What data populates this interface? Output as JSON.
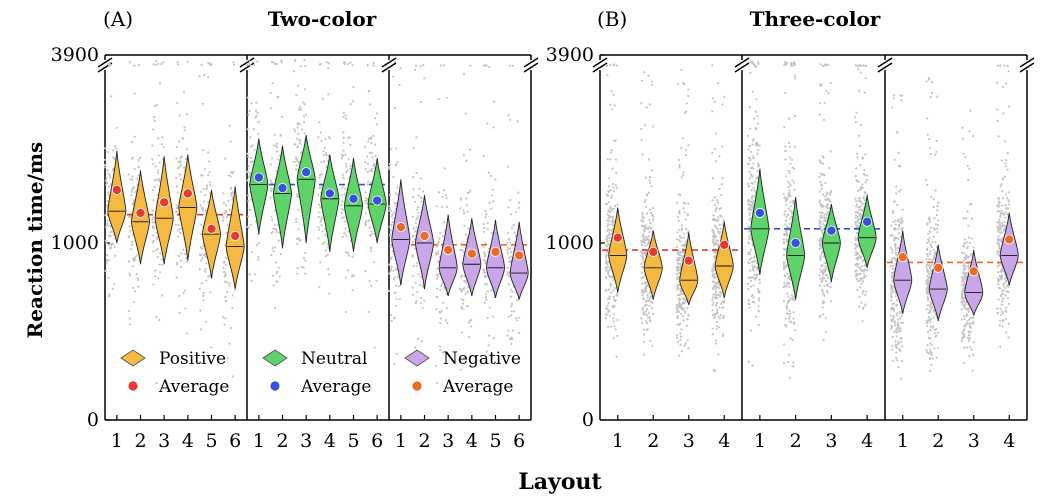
{
  "chart_data": [
    {
      "type": "violin",
      "panel_label": "(A)",
      "title": "Two-color",
      "xlabel": "Layout",
      "ylabel": "Reaction time/ms",
      "yticks": [
        "0",
        "1000",
        "3900"
      ],
      "axis_break": true,
      "groups": [
        {
          "name": "Positive",
          "average_label": "Average",
          "color": "#F5B942",
          "avg_color": "#E8392F",
          "ref_line": 1160,
          "categories": [
            "1",
            "2",
            "3",
            "4",
            "5",
            "6"
          ],
          "medians": [
            1180,
            1120,
            1140,
            1200,
            1050,
            980
          ],
          "averages": [
            1300,
            1170,
            1230,
            1280,
            1080,
            1040
          ],
          "ranges": [
            [
              1000,
              1520
            ],
            [
              880,
              1410
            ],
            [
              880,
              1490
            ],
            [
              900,
              1500
            ],
            [
              800,
              1300
            ],
            [
              740,
              1320
            ]
          ]
        },
        {
          "name": "Neutral",
          "average_label": "Average",
          "color": "#5ED36A",
          "avg_color": "#3A4FE0",
          "ref_line": 1330,
          "categories": [
            "1",
            "2",
            "3",
            "4",
            "5",
            "6"
          ],
          "medians": [
            1330,
            1280,
            1360,
            1250,
            1210,
            1220
          ],
          "averages": [
            1370,
            1310,
            1400,
            1280,
            1250,
            1240
          ],
          "ranges": [
            [
              1050,
              1590
            ],
            [
              970,
              1550
            ],
            [
              1000,
              1610
            ],
            [
              950,
              1500
            ],
            [
              950,
              1480
            ],
            [
              1000,
              1480
            ]
          ]
        },
        {
          "name": "Negative",
          "average_label": "Average",
          "color": "#C9A6E8",
          "avg_color": "#EE6A23",
          "ref_line": 990,
          "categories": [
            "1",
            "2",
            "3",
            "4",
            "5",
            "6"
          ],
          "medians": [
            1020,
            1000,
            860,
            880,
            860,
            830
          ],
          "averages": [
            1090,
            1040,
            960,
            940,
            950,
            930
          ],
          "ranges": [
            [
              760,
              1360
            ],
            [
              740,
              1270
            ],
            [
              700,
              1160
            ],
            [
              700,
              1140
            ],
            [
              690,
              1130
            ],
            [
              680,
              1120
            ]
          ]
        }
      ]
    },
    {
      "type": "violin",
      "panel_label": "(B)",
      "title": "Three-color",
      "xlabel": "Layout",
      "ylabel": "Reaction time/ms",
      "yticks": [
        "0",
        "1000",
        "3900"
      ],
      "axis_break": true,
      "groups": [
        {
          "name": "Positive",
          "color": "#F5B942",
          "avg_color": "#E8392F",
          "ref_line": 960,
          "categories": [
            "1",
            "2",
            "3",
            "4"
          ],
          "medians": [
            930,
            860,
            790,
            870
          ],
          "averages": [
            1030,
            950,
            900,
            990
          ],
          "ranges": [
            [
              720,
              1200
            ],
            [
              680,
              1070
            ],
            [
              650,
              1060
            ],
            [
              690,
              1120
            ]
          ]
        },
        {
          "name": "Neutral",
          "color": "#5ED36A",
          "avg_color": "#3A4FE0",
          "ref_line": 1080,
          "categories": [
            "1",
            "2",
            "3",
            "4"
          ],
          "medians": [
            1080,
            930,
            1000,
            1030
          ],
          "averages": [
            1170,
            1000,
            1070,
            1120
          ],
          "ranges": [
            [
              820,
              1420
            ],
            [
              680,
              1260
            ],
            [
              780,
              1220
            ],
            [
              860,
              1270
            ]
          ]
        },
        {
          "name": "Negative",
          "color": "#C9A6E8",
          "avg_color": "#EE6A23",
          "ref_line": 890,
          "categories": [
            "1",
            "2",
            "3",
            "4"
          ],
          "medians": [
            790,
            740,
            720,
            930
          ],
          "averages": [
            920,
            860,
            840,
            1020
          ],
          "ranges": [
            [
              600,
              1070
            ],
            [
              560,
              990
            ],
            [
              590,
              960
            ],
            [
              760,
              1170
            ]
          ]
        }
      ]
    }
  ]
}
